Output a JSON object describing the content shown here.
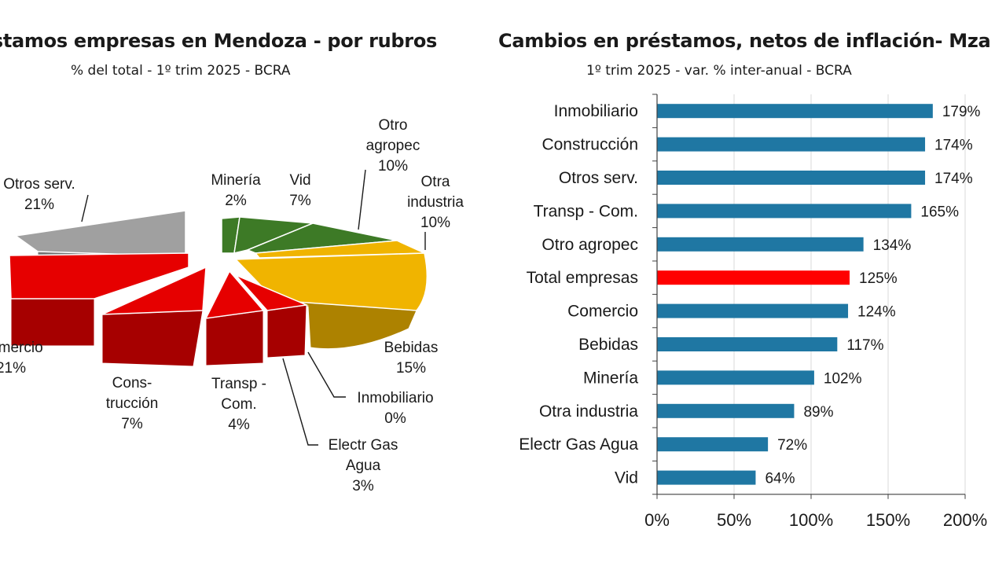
{
  "colors": {
    "bar": "#1f77a3",
    "bar_highlight": "#ff0000",
    "grid": "#d9d9d9",
    "red": "#e60000",
    "green": "#3d7a26",
    "yellow": "#f0b400",
    "gray": "#a0a0a0"
  },
  "chart_data": [
    {
      "type": "pie",
      "title": "Préstamos empresas en Mendoza - por rubros",
      "subtitle": "% del total  - 1º trim 2025 - BCRA",
      "slices": [
        {
          "name": "Minería",
          "value": 2,
          "label": "2%",
          "color": "#3d7a26"
        },
        {
          "name": "Vid",
          "value": 7,
          "label": "7%",
          "color": "#3d7a26"
        },
        {
          "name": "Otro agropec",
          "value": 10,
          "label": "10%",
          "color": "#3d7a26"
        },
        {
          "name": "Otra industria",
          "value": 10,
          "label": "10%",
          "color": "#f0b400"
        },
        {
          "name": "Bebidas",
          "value": 15,
          "label": "15%",
          "color": "#f0b400"
        },
        {
          "name": "Inmobiliario",
          "value": 0,
          "label": "0%",
          "color": "#e60000"
        },
        {
          "name": "Electr Gas Agua",
          "value": 3,
          "label": "3%",
          "color": "#e60000"
        },
        {
          "name": "Transp - Com.",
          "value": 4,
          "label": "4%",
          "color": "#e60000"
        },
        {
          "name": "Construcción",
          "value": 7,
          "label": "7%",
          "color": "#e60000"
        },
        {
          "name": "Comercio",
          "value": 21,
          "label": "21%",
          "color": "#e60000"
        },
        {
          "name": "Otros serv.",
          "value": 21,
          "label": "21%",
          "color": "#a0a0a0"
        }
      ],
      "slice_text": {
        "mineria": [
          "Minería",
          "2%"
        ],
        "vid": [
          "Vid",
          "7%"
        ],
        "otro_agropec": [
          "Otro",
          "agropec",
          "10%"
        ],
        "otra_industria": [
          "Otra",
          "industria",
          "10%"
        ],
        "bebidas": [
          "Bebidas",
          "15%"
        ],
        "inmobiliario": [
          "Inmobiliario",
          "0%"
        ],
        "electr": [
          "Electr Gas",
          "Agua",
          "3%"
        ],
        "transp": [
          "Transp -",
          "Com.",
          "4%"
        ],
        "construccion": [
          "Cons-",
          "trucción",
          "7%"
        ],
        "comercio": [
          "Comercio",
          "21%"
        ],
        "otros_serv": [
          "Otros serv.",
          "21%"
        ]
      }
    },
    {
      "type": "bar",
      "orientation": "horizontal",
      "title": "Cambios en préstamos, netos de inflación- Mza",
      "subtitle": "1º trim 2025 - var. % inter-anual - BCRA",
      "categories": [
        "Inmobiliario",
        "Construcción",
        "Otros serv.",
        "Transp - Com.",
        "Otro agropec",
        "Total empresas",
        "Comercio",
        "Bebidas",
        "Minería",
        "Otra industria",
        "Electr Gas Agua",
        "Vid"
      ],
      "values": [
        179,
        174,
        174,
        165,
        134,
        125,
        124,
        117,
        102,
        89,
        72,
        64
      ],
      "value_labels": [
        "179%",
        "174%",
        "174%",
        "165%",
        "134%",
        "125%",
        "124%",
        "117%",
        "102%",
        "89%",
        "72%",
        "64%"
      ],
      "highlight": "Total empresas",
      "xlim": [
        0,
        200
      ],
      "xticks": [
        0,
        50,
        100,
        150,
        200
      ],
      "xtick_labels": [
        "0%",
        "50%",
        "100%",
        "150%",
        "200%"
      ],
      "grid": true
    }
  ]
}
